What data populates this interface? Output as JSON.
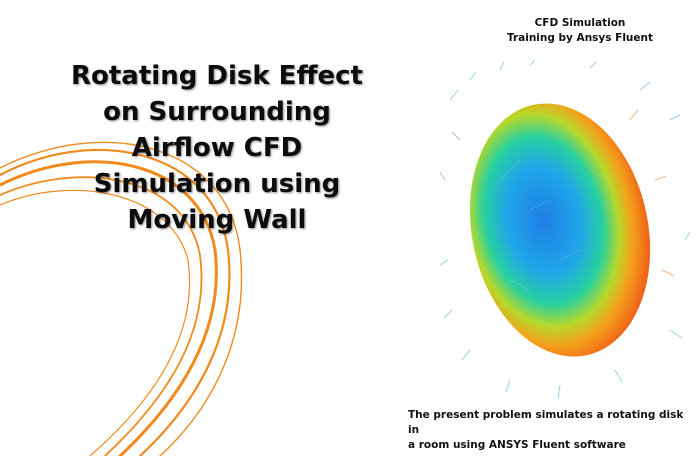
{
  "title": {
    "lines": [
      "Rotating Disk Effect",
      "on Surrounding",
      "Airflow CFD",
      "Simulation using",
      "Moving Wall"
    ]
  },
  "brand": {
    "line1": "CFD Simulation",
    "line2": "Training by Ansys Fluent"
  },
  "caption": {
    "line1": "The present problem simulates a rotating disk in",
    "line2": "a room using ANSYS Fluent software"
  },
  "colors": {
    "accent_swirl": "#f08a1c",
    "disk_core": "#1f7fe6",
    "disk_mid": "#28d0a0",
    "disk_edge": "#f05a18"
  },
  "icons": {
    "decoration": "orange-swirl-graphic",
    "visualization": "rotating-disk-velocity-vectors"
  }
}
